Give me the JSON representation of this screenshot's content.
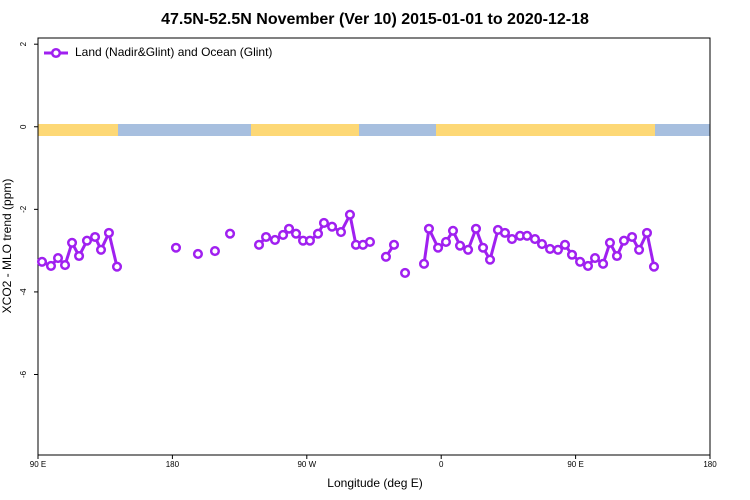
{
  "chart_data": {
    "type": "line",
    "title": "47.5N-52.5N November (Ver 10)   2015-01-01 to 2020-12-18",
    "xlabel": "Longitude (deg E)",
    "ylabel": "XCO2 - MLO trend (ppm)",
    "xlim": [
      90,
      540
    ],
    "ylim": [
      -7.95,
      2.15
    ],
    "xticks": [
      {
        "value": 90,
        "label": "90 E"
      },
      180,
      {
        "value": 270,
        "label": "90 W"
      },
      {
        "value": 360,
        "label": "0"
      },
      {
        "value": 450,
        "label": "90 E"
      },
      {
        "value": 540,
        "label": "180"
      }
    ],
    "yticks": [
      2,
      0,
      -2,
      -4,
      -6
    ],
    "legend": "upper left",
    "x": [
      92.7,
      98.7,
      103.4,
      108.1,
      112.8,
      117.5,
      122.8,
      128.2,
      132.2,
      137.5,
      142.9,
      null,
      182.4,
      null,
      197.1,
      null,
      208.5,
      null,
      218.6,
      null,
      238,
      242.7,
      248.7,
      254.1,
      258.1,
      262.8,
      267.5,
      272.1,
      277.5,
      281.5,
      286.9,
      292.9,
      298.9,
      302.9,
      307.6,
      312.3,
      null,
      323,
      328.4,
      null,
      335.8,
      null,
      348.5,
      351.8,
      357.9,
      363.2,
      367.9,
      372.6,
      378,
      383.3,
      388,
      392.7,
      398,
      402.7,
      407.4,
      412.8,
      417.5,
      422.8,
      427.5,
      432.9,
      438.2,
      442.9,
      447.6,
      453,
      458.3,
      463,
      468.4,
      473,
      477.7,
      482.4,
      487.8,
      492.5,
      497.8,
      502.5
    ],
    "series": [
      {
        "name": "Land (Nadir&Glint) and Ocean (Glint)",
        "color": "#a020f0",
        "values": [
          -3.27,
          -3.37,
          -3.18,
          -3.35,
          -2.81,
          -3.13,
          -2.76,
          -2.67,
          -2.98,
          -2.57,
          -3.39,
          null,
          -2.93,
          null,
          -3.08,
          null,
          -3.01,
          null,
          -2.59,
          null,
          -2.86,
          -2.67,
          -2.74,
          -2.62,
          -2.47,
          -2.59,
          -2.76,
          -2.76,
          -2.59,
          -2.33,
          -2.42,
          -2.55,
          -2.13,
          -2.86,
          -2.86,
          -2.79,
          null,
          -3.15,
          -2.86,
          null,
          -3.54,
          null,
          -3.32,
          -2.47,
          -2.93,
          -2.79,
          -2.52,
          -2.88,
          -2.98,
          -2.47,
          -2.93,
          -3.22,
          -2.5,
          -2.57,
          -2.72,
          -2.64,
          -2.64,
          -2.72,
          -2.84,
          -2.96,
          -2.98,
          -2.86,
          -3.1,
          -3.27,
          -3.37,
          -3.18,
          -3.32,
          -2.81,
          -3.13,
          -2.76,
          -2.67,
          -2.98,
          -2.57,
          -3.39
        ]
      }
    ]
  }
}
